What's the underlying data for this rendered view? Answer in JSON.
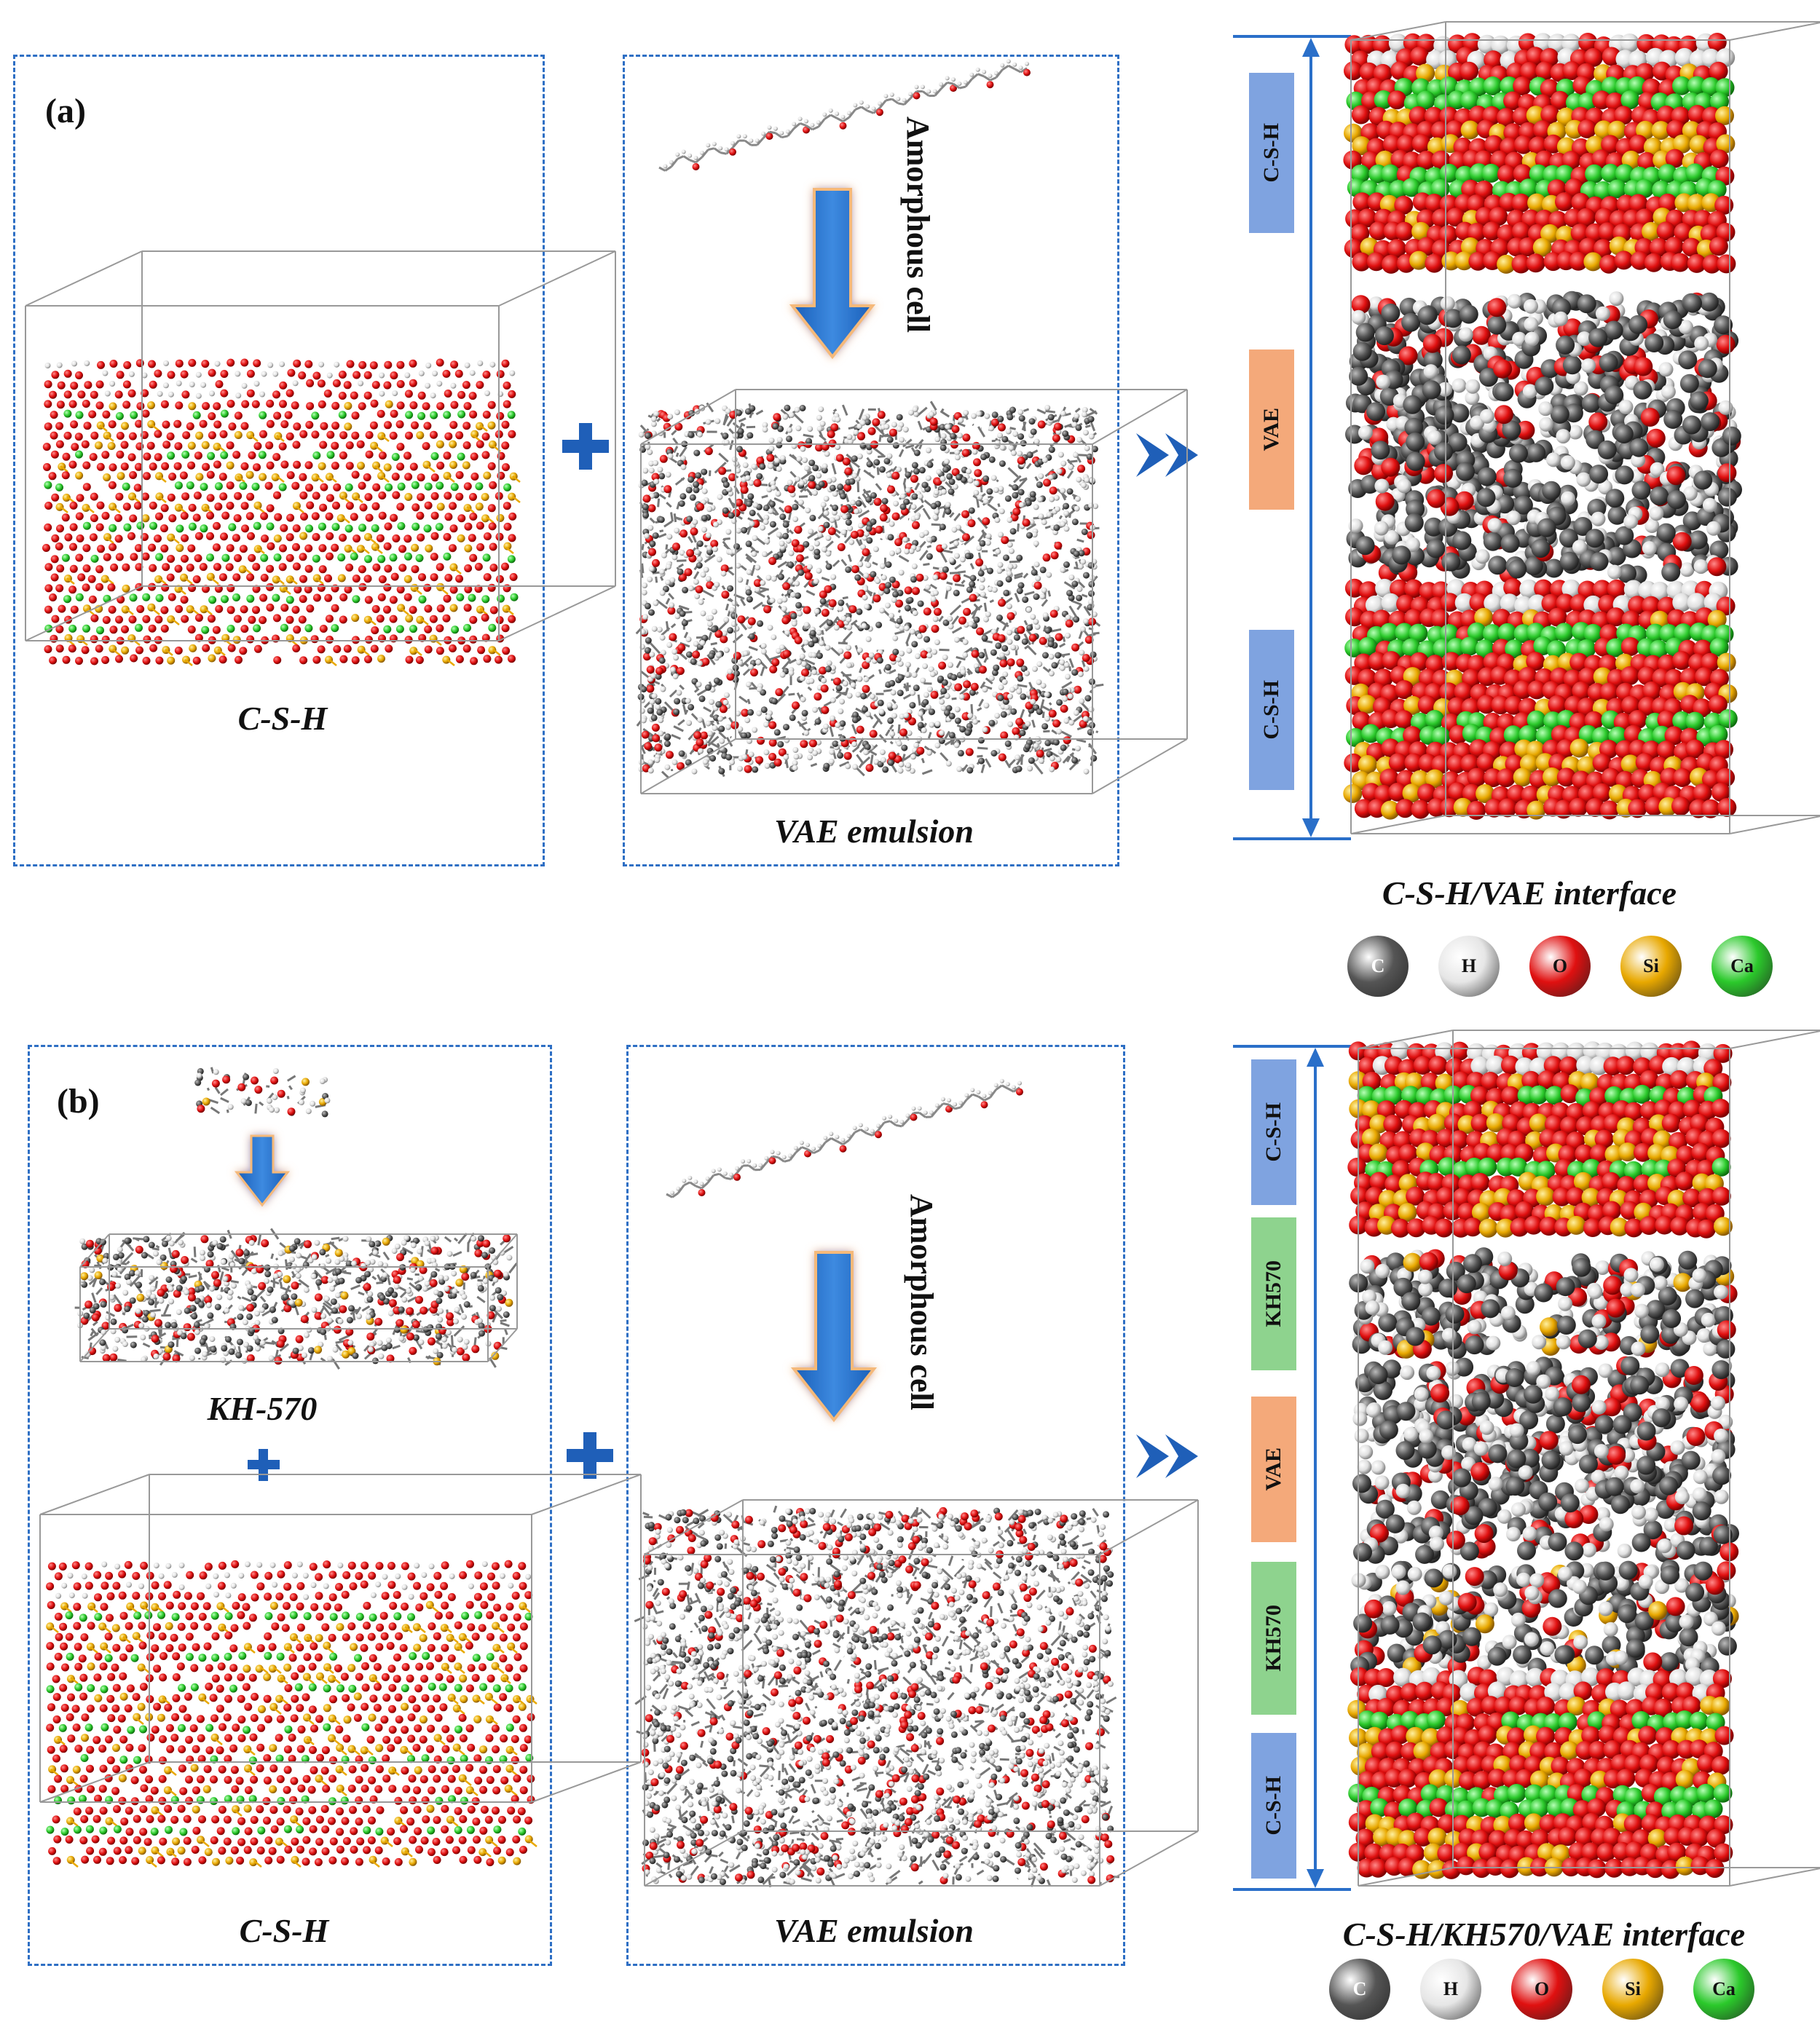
{
  "panel_a": {
    "label": "(a)",
    "csh_caption": "C-S-H",
    "vae_caption": "VAE emulsion",
    "amorphous_text": "Amorphous cell",
    "result_caption": "C-S-H/VAE interface",
    "layers": [
      "C-S-H",
      "VAE",
      "C-S-H"
    ]
  },
  "panel_b": {
    "label": "(b)",
    "kh_caption": "KH-570",
    "csh_caption": "C-S-H",
    "vae_caption": "VAE emulsion",
    "amorphous_text": "Amorphous cell",
    "result_caption": "C-S-H/KH570/VAE interface",
    "layers": [
      "C-S-H",
      "KH570",
      "VAE",
      "KH570",
      "C-S-H"
    ]
  },
  "legend": [
    {
      "symbol": "C",
      "color": "#555555"
    },
    {
      "symbol": "H",
      "color": "#e6e6e6"
    },
    {
      "symbol": "O",
      "color": "#e01010"
    },
    {
      "symbol": "Si",
      "color": "#e8a800"
    },
    {
      "symbol": "Ca",
      "color": "#2bc92b"
    }
  ],
  "colors": {
    "dash": "#2e6fc4",
    "arrow": "#2a6fc9",
    "csh_layer": "#7fa3e0",
    "vae_layer": "#f4a97a",
    "kh_layer": "#8ed38e",
    "C": "#555555",
    "H": "#e6e6e6",
    "O": "#e01010",
    "Si": "#e8a800",
    "Ca": "#2bc92b"
  }
}
